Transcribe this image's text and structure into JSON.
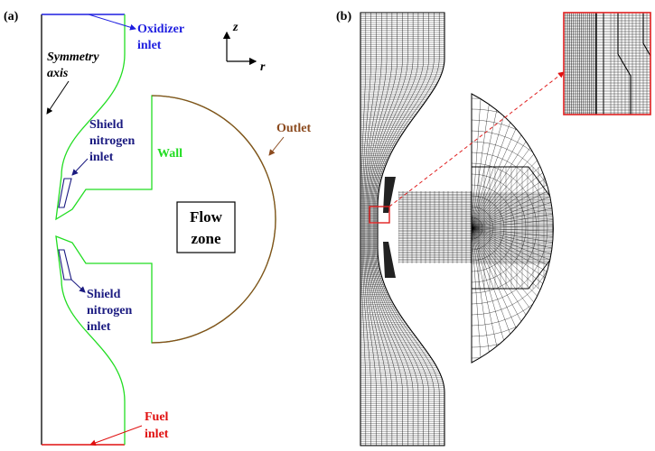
{
  "panel_a": {
    "label": "(a)",
    "oxidizer": [
      "Oxidizer",
      "inlet"
    ],
    "symmetry": [
      "Symmetry",
      "axis"
    ],
    "shield_top": [
      "Shield",
      "nitrogen",
      "inlet"
    ],
    "wall": "Wall",
    "outlet": "Outlet",
    "flow_zone": [
      "Flow",
      "zone"
    ],
    "shield_bottom": [
      "Shield",
      "nitrogen",
      "inlet"
    ],
    "fuel": [
      "Fuel",
      "inlet"
    ],
    "axis_z": "z",
    "axis_r": "r"
  },
  "panel_b": {
    "label": "(b)"
  },
  "colors": {
    "oxidizer": "#1f1fe0",
    "fuel": "#e01010",
    "wall": "#22dd22",
    "shield": "#1a1a80",
    "outlet": "#8b4a1e",
    "axis": "#000000",
    "mesh": "#000000",
    "zoom_frame": "#e02020"
  }
}
